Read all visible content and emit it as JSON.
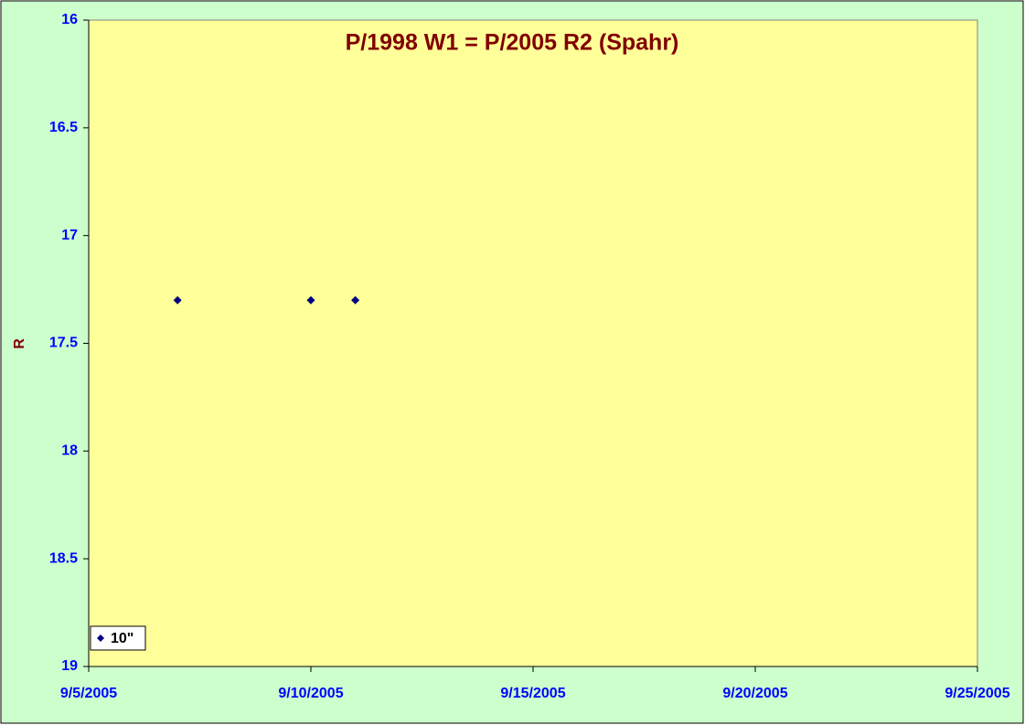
{
  "chart_data": {
    "type": "scatter",
    "title": "P/1998 W1 = P/2005 R2 (Spahr)",
    "y_label": "R",
    "x": [
      "2005-09-07",
      "2005-09-10",
      "2005-09-11"
    ],
    "series": [
      {
        "name": "10\"",
        "color": "#000080",
        "values": [
          17.3,
          17.3,
          17.3
        ]
      }
    ],
    "xlim": [
      "2005-09-05",
      "2005-09-25"
    ],
    "xticks": [
      {
        "value": "2005-09-05",
        "label": "9/5/2005"
      },
      {
        "value": "2005-09-10",
        "label": "9/10/2005"
      },
      {
        "value": "2005-09-15",
        "label": "9/15/2005"
      },
      {
        "value": "2005-09-20",
        "label": "9/20/2005"
      },
      {
        "value": "2005-09-25",
        "label": "9/25/2005"
      }
    ],
    "ylim": [
      16,
      19
    ],
    "yticks": [
      16,
      16.5,
      17,
      17.5,
      18,
      18.5,
      19
    ],
    "y_reversed": true,
    "grid": false,
    "legend": "bottom-left",
    "background_color": "#ccffcc",
    "plot_color": "#ffff99",
    "title_color": "#800000",
    "tick_color": "#0000ff"
  }
}
